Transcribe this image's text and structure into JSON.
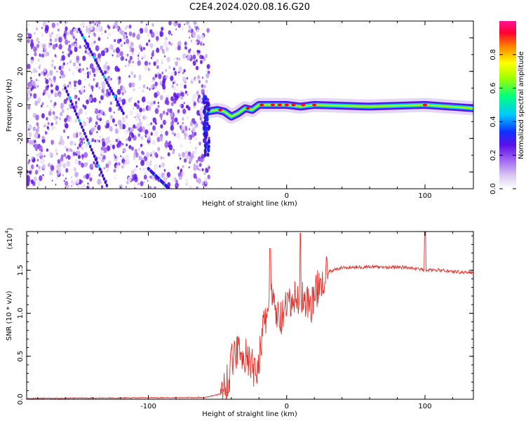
{
  "title": "C2E4.2024.020.08.16.G20",
  "colors": {
    "snr_line": "#e0302a",
    "axis": "#000000",
    "spectrogram_cmap": [
      "#ffffff",
      "#d9c6f2",
      "#9b5cf0",
      "#5a10e8",
      "#1030ff",
      "#00c8ff",
      "#00ff80",
      "#a0ff00",
      "#ffff00",
      "#ff8000",
      "#ff0030",
      "#ff1493"
    ]
  },
  "chart_data": [
    {
      "type": "heatmap",
      "xlabel": "Height of straight line (km)",
      "ylabel": "Frequency (Hz)",
      "xlim": [
        -188,
        135
      ],
      "ylim": [
        -50,
        50
      ],
      "xticks": [
        -100,
        0,
        100
      ],
      "yticks": [
        -40,
        -20,
        0,
        20,
        40
      ],
      "noise_region_x": [
        -188,
        -58
      ],
      "carrier_track": [
        {
          "x": -58,
          "y": -4
        },
        {
          "x": -50,
          "y": -3
        },
        {
          "x": -45,
          "y": -4
        },
        {
          "x": -40,
          "y": -7
        },
        {
          "x": -35,
          "y": -5
        },
        {
          "x": -30,
          "y": -2
        },
        {
          "x": -25,
          "y": -3
        },
        {
          "x": -20,
          "y": 0
        },
        {
          "x": -10,
          "y": 0
        },
        {
          "x": 0,
          "y": 0
        },
        {
          "x": 10,
          "y": -1
        },
        {
          "x": 20,
          "y": 0
        },
        {
          "x": 60,
          "y": -1
        },
        {
          "x": 100,
          "y": 0
        },
        {
          "x": 135,
          "y": -2
        }
      ],
      "streaks": [
        {
          "x": [
            -150,
            -118
          ],
          "y": [
            45,
            -5
          ]
        },
        {
          "x": [
            -160,
            -130
          ],
          "y": [
            10,
            -48
          ]
        },
        {
          "x": [
            -100,
            -85
          ],
          "y": [
            -38,
            -50
          ]
        }
      ],
      "colorbar": {
        "label": "Normalized spectral amplitude",
        "range": [
          0.0,
          1.0
        ],
        "ticks": [
          0.0,
          0.2,
          0.4,
          0.6,
          0.8
        ]
      }
    },
    {
      "type": "line",
      "xlabel": "Height of straight line (km)",
      "ylabel": "SNR (10 * v/v)",
      "scale_label": "(x10",
      "scale_exponent": "4",
      "scale_close": ")",
      "xlim": [
        -188,
        135
      ],
      "ylim": [
        0,
        1.95
      ],
      "xticks": [
        -100,
        0,
        100
      ],
      "yticks": [
        0.0,
        0.5,
        1.0,
        1.5
      ],
      "series": [
        {
          "values_key_points": [
            {
              "x": -188,
              "y": 0.01
            },
            {
              "x": -60,
              "y": 0.02
            },
            {
              "x": -48,
              "y": 0.06
            },
            {
              "x": -42,
              "y": 0.25
            },
            {
              "x": -38,
              "y": 0.55
            },
            {
              "x": -34,
              "y": 0.6
            },
            {
              "x": -28,
              "y": 0.45
            },
            {
              "x": -22,
              "y": 0.3
            },
            {
              "x": -18,
              "y": 0.7
            },
            {
              "x": -12,
              "y": 1.2
            },
            {
              "x": -5,
              "y": 0.9
            },
            {
              "x": 0,
              "y": 1.05
            },
            {
              "x": 5,
              "y": 1.15
            },
            {
              "x": 10,
              "y": 1.2
            },
            {
              "x": 18,
              "y": 1.1
            },
            {
              "x": 25,
              "y": 1.4
            },
            {
              "x": 30,
              "y": 1.48
            },
            {
              "x": 40,
              "y": 1.53
            },
            {
              "x": 60,
              "y": 1.54
            },
            {
              "x": 90,
              "y": 1.53
            },
            {
              "x": 100,
              "y": 1.5
            },
            {
              "x": 110,
              "y": 1.5
            },
            {
              "x": 125,
              "y": 1.48
            },
            {
              "x": 135,
              "y": 1.47
            }
          ],
          "spikes": [
            {
              "x": -12,
              "y": 1.75
            },
            {
              "x": 10,
              "y": 1.93
            },
            {
              "x": 100,
              "y": 1.95
            }
          ]
        }
      ]
    }
  ]
}
